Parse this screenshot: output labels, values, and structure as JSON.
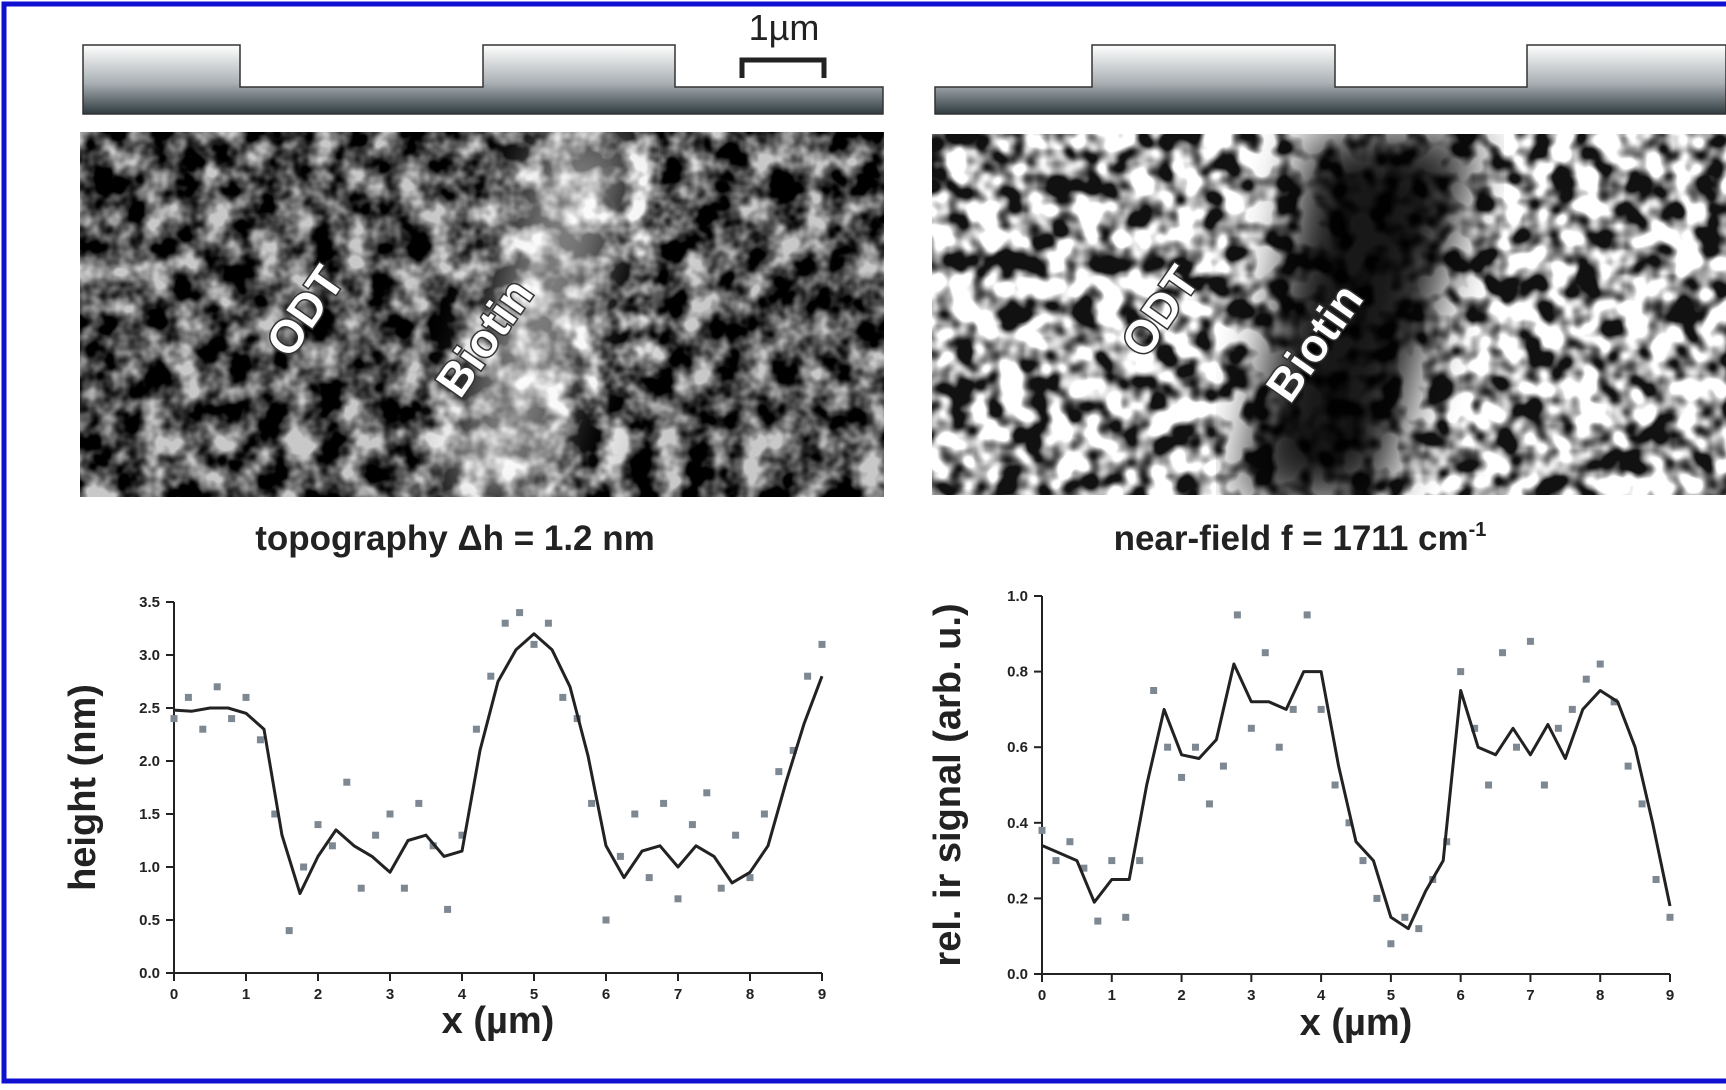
{
  "scale_bar": "1µm",
  "panels": [
    {
      "labels": [
        "ODT",
        "Biotin"
      ]
    },
    {
      "labels": [
        "ODT",
        "Biotin"
      ]
    }
  ],
  "chart_data": [
    {
      "type": "line",
      "title": "topography Δh = 1.2 nm",
      "x_label": "x (µm)",
      "y_label": "height (nm)",
      "xlim": [
        0,
        9
      ],
      "xticks": [
        0,
        1,
        2,
        3,
        4,
        5,
        6,
        7,
        8,
        9
      ],
      "ylim": [
        0,
        3.5
      ],
      "yticks": [
        {
          "value": 0,
          "label": "0.0"
        },
        0.5,
        {
          "value": 1,
          "label": "1.0"
        },
        1.5,
        {
          "value": 2,
          "label": "2.0"
        },
        2.5,
        {
          "value": 3,
          "label": "3.0"
        },
        3.5
      ],
      "series": [
        {
          "style": "dots",
          "color": "#7d8892",
          "x": [
            0,
            0.2,
            0.4,
            0.6,
            0.8,
            1,
            1.2,
            1.4,
            1.6,
            1.8,
            2,
            2.2,
            2.4,
            2.6,
            2.8,
            3,
            3.2,
            3.4,
            3.6,
            3.8,
            4,
            4.2,
            4.4,
            4.6,
            4.8,
            5,
            5.2,
            5.4,
            5.6,
            5.8,
            6,
            6.2,
            6.4,
            6.6,
            6.8,
            7,
            7.2,
            7.4,
            7.6,
            7.8,
            8,
            8.2,
            8.4,
            8.6,
            8.8,
            9
          ],
          "values": [
            2.4,
            2.6,
            2.3,
            2.7,
            2.4,
            2.6,
            2.2,
            1.5,
            0.4,
            1.0,
            1.4,
            1.2,
            1.8,
            0.8,
            1.3,
            1.5,
            0.8,
            1.6,
            1.2,
            0.6,
            1.3,
            2.3,
            2.8,
            3.3,
            3.4,
            3.1,
            3.3,
            2.6,
            2.4,
            1.6,
            0.5,
            1.1,
            1.5,
            0.9,
            1.6,
            0.7,
            1.4,
            1.7,
            0.8,
            1.3,
            0.9,
            1.5,
            1.9,
            2.1,
            2.8,
            3.1
          ]
        },
        {
          "style": "line",
          "color": "#222222",
          "x": [
            0,
            0.25,
            0.5,
            0.75,
            1,
            1.25,
            1.5,
            1.75,
            2,
            2.25,
            2.5,
            2.75,
            3,
            3.25,
            3.5,
            3.75,
            4,
            4.25,
            4.5,
            4.75,
            5,
            5.25,
            5.5,
            5.75,
            6,
            6.25,
            6.5,
            6.75,
            7,
            7.25,
            7.5,
            7.75,
            8,
            8.25,
            8.5,
            8.75,
            9
          ],
          "values": [
            2.48,
            2.47,
            2.5,
            2.5,
            2.45,
            2.3,
            1.3,
            0.75,
            1.1,
            1.35,
            1.2,
            1.1,
            0.95,
            1.25,
            1.3,
            1.1,
            1.15,
            2.1,
            2.75,
            3.05,
            3.2,
            3.05,
            2.7,
            2.05,
            1.2,
            0.9,
            1.15,
            1.2,
            1.0,
            1.2,
            1.1,
            0.85,
            0.95,
            1.2,
            1.8,
            2.35,
            2.8
          ]
        }
      ]
    },
    {
      "type": "line",
      "title": "near-field f = 1711 cm",
      "title_sup": "-1",
      "x_label": "x (µm)",
      "y_label": "rel. ir signal (arb. u.)",
      "xlim": [
        0,
        9
      ],
      "xticks": [
        0,
        1,
        2,
        3,
        4,
        5,
        6,
        7,
        8,
        9
      ],
      "ylim": [
        0,
        1
      ],
      "yticks": [
        {
          "value": 0,
          "label": "0.0"
        },
        0.2,
        0.4,
        0.6,
        0.8,
        {
          "value": 1,
          "label": "1.0"
        }
      ],
      "series": [
        {
          "style": "dots",
          "color": "#7d8892",
          "x": [
            0,
            0.2,
            0.4,
            0.6,
            0.8,
            1,
            1.2,
            1.4,
            1.6,
            1.8,
            2,
            2.2,
            2.4,
            2.6,
            2.8,
            3,
            3.2,
            3.4,
            3.6,
            3.8,
            4,
            4.2,
            4.4,
            4.6,
            4.8,
            5,
            5.2,
            5.4,
            5.6,
            5.8,
            6,
            6.2,
            6.4,
            6.6,
            6.8,
            7,
            7.2,
            7.4,
            7.6,
            7.8,
            8,
            8.2,
            8.4,
            8.6,
            8.8,
            9
          ],
          "values": [
            0.38,
            0.3,
            0.35,
            0.28,
            0.14,
            0.3,
            0.15,
            0.3,
            0.75,
            0.6,
            0.52,
            0.6,
            0.45,
            0.55,
            0.95,
            0.65,
            0.85,
            0.6,
            0.7,
            0.95,
            0.7,
            0.5,
            0.4,
            0.3,
            0.2,
            0.08,
            0.15,
            0.12,
            0.25,
            0.35,
            0.8,
            0.65,
            0.5,
            0.85,
            0.6,
            0.88,
            0.5,
            0.65,
            0.7,
            0.78,
            0.82,
            0.72,
            0.55,
            0.45,
            0.25,
            0.15
          ]
        },
        {
          "style": "line",
          "color": "#222222",
          "x": [
            0,
            0.25,
            0.5,
            0.75,
            1,
            1.25,
            1.5,
            1.75,
            2,
            2.25,
            2.5,
            2.75,
            3,
            3.25,
            3.5,
            3.75,
            4,
            4.25,
            4.5,
            4.75,
            5,
            5.25,
            5.5,
            5.75,
            6,
            6.25,
            6.5,
            6.75,
            7,
            7.25,
            7.5,
            7.75,
            8,
            8.25,
            8.5,
            8.75,
            9
          ],
          "values": [
            0.34,
            0.32,
            0.3,
            0.19,
            0.25,
            0.25,
            0.5,
            0.7,
            0.58,
            0.57,
            0.62,
            0.82,
            0.72,
            0.72,
            0.7,
            0.8,
            0.8,
            0.55,
            0.35,
            0.3,
            0.15,
            0.12,
            0.22,
            0.3,
            0.75,
            0.6,
            0.58,
            0.65,
            0.58,
            0.66,
            0.57,
            0.7,
            0.75,
            0.72,
            0.6,
            0.4,
            0.18
          ]
        }
      ]
    }
  ]
}
